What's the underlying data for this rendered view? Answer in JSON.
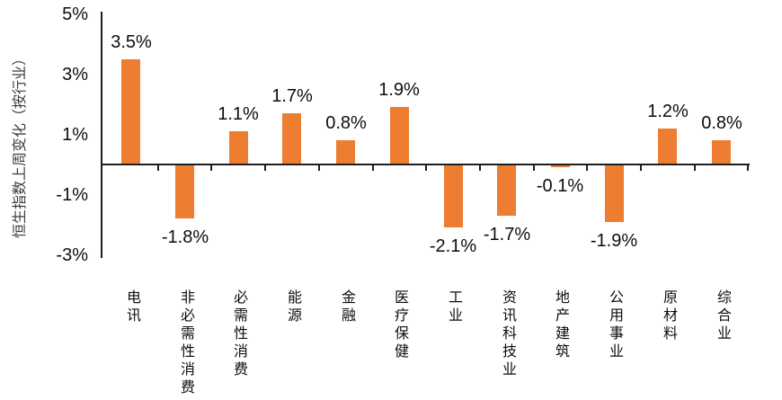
{
  "chart_data": {
    "type": "bar",
    "title": "",
    "ylabel": "恒生指数上周变化（按行业）",
    "xlabel": "",
    "categories": [
      "电讯",
      "非必需性消费",
      "必需性消费",
      "能源",
      "金融",
      "医疗保健",
      "工业",
      "资讯科技业",
      "地产建筑",
      "公用事业",
      "原材料",
      "综合业"
    ],
    "values": [
      3.5,
      -1.8,
      1.1,
      1.7,
      0.8,
      1.9,
      -2.1,
      -1.7,
      -0.1,
      -1.9,
      1.2,
      0.8
    ],
    "value_labels": [
      "3.5%",
      "-1.8%",
      "1.1%",
      "1.7%",
      "0.8%",
      "1.9%",
      "-2.1%",
      "-1.7%",
      "-0.1%",
      "-1.9%",
      "1.2%",
      "0.8%"
    ],
    "y_ticks": [
      "5%",
      "3%",
      "1%",
      "-1%",
      "-3%"
    ],
    "y_tick_values": [
      5,
      3,
      1,
      -1,
      -3
    ],
    "ylim": [
      -3,
      5
    ],
    "grid": false,
    "legend": "none",
    "bar_color": "#ED7D31",
    "axis_color": "#1f1f1f",
    "text_color": "#0d0d0d",
    "background_color": "#ffffff"
  }
}
